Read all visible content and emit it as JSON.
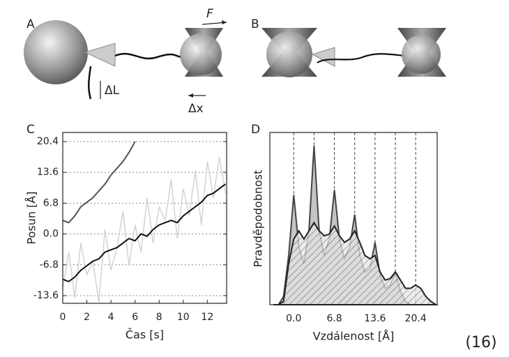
{
  "panels": [
    "A",
    "B",
    "C",
    "D"
  ],
  "annotations": {
    "force": "F",
    "delta_l": "ΔL",
    "delta_x": "Δx"
  },
  "equation_number": "(16)",
  "chart_data": [
    {
      "type": "line",
      "x_label": "Čas [s]",
      "y_label": "Posun [Å]",
      "x": [
        0,
        0.5,
        1,
        1.5,
        2,
        2.5,
        3,
        3.5,
        4,
        4.5,
        5,
        5.5,
        6,
        6.5,
        7,
        7.5,
        8,
        8.5,
        9,
        9.5,
        10,
        10.5,
        11,
        11.5,
        12,
        12.5,
        13,
        13.5
      ],
      "series": [
        {
          "color": "#d3d3d3",
          "values": [
            -12,
            -4,
            -14,
            -2,
            -9,
            -6,
            -15,
            1,
            -8,
            -3,
            5,
            -7,
            2,
            -4,
            8,
            -2,
            6,
            3,
            12,
            -1,
            10,
            4,
            14,
            2,
            16,
            8,
            17,
            9
          ]
        },
        {
          "color": "#555555",
          "values": [
            3,
            2.5,
            4,
            6,
            7,
            8,
            9.5,
            11,
            13,
            14.5,
            16,
            18,
            20.4,
            null,
            null,
            null,
            null,
            null,
            null,
            null,
            null,
            null,
            null,
            null,
            null,
            null,
            null,
            null
          ]
        },
        {
          "color": "#111111",
          "values": [
            -10,
            -10.5,
            -9.5,
            -8,
            -7,
            -6,
            -5.5,
            -4,
            -3.5,
            -3,
            -2,
            -1,
            -1.5,
            0,
            -0.5,
            1,
            2,
            2.5,
            3,
            2.5,
            4,
            5,
            6,
            7,
            8.5,
            9,
            10,
            11
          ]
        }
      ],
      "xlim": [
        0,
        13.6
      ],
      "ylim": [
        -15.3,
        22.4
      ],
      "xticks": [
        0,
        2,
        4,
        6,
        8,
        10,
        12
      ],
      "yticks": [
        -13.6,
        -6.8,
        {
          "value": 0,
          "label": "0.0"
        },
        6.8,
        13.6,
        20.4
      ],
      "grid": true
    },
    {
      "type": "area",
      "x_label": "Vzdálenost [Å]",
      "y_label": "Pravděpodobnost",
      "x": [
        -3.4,
        -2.55,
        -1.7,
        -0.85,
        0,
        0.85,
        1.7,
        2.55,
        3.4,
        4.25,
        5.1,
        5.95,
        6.8,
        7.65,
        8.5,
        9.35,
        10.2,
        11.05,
        11.9,
        12.75,
        13.6,
        14.45,
        15.3,
        16.15,
        17,
        17.85,
        18.7,
        19.55,
        20.4,
        21.25,
        22.1,
        22.95,
        23.8
      ],
      "series": [
        {
          "color": "#444444",
          "fill": "#c4c4c4",
          "hatch": false,
          "values": [
            0,
            0,
            0.05,
            0.3,
            0.67,
            0.35,
            0.25,
            0.45,
            0.97,
            0.45,
            0.3,
            0.4,
            0.7,
            0.4,
            0.28,
            0.35,
            0.55,
            0.3,
            0.2,
            0.22,
            0.38,
            0.18,
            0.1,
            0.12,
            0.2,
            0.08,
            0.02,
            0,
            0,
            0,
            0,
            0,
            0
          ]
        },
        {
          "color": "#222222",
          "fill": "none",
          "hatch": true,
          "values": [
            0,
            0,
            0.02,
            0.25,
            0.4,
            0.45,
            0.4,
            0.45,
            0.5,
            0.45,
            0.42,
            0.43,
            0.48,
            0.42,
            0.38,
            0.4,
            0.45,
            0.38,
            0.3,
            0.28,
            0.3,
            0.2,
            0.15,
            0.16,
            0.2,
            0.15,
            0.1,
            0.1,
            0.12,
            0.1,
            0.05,
            0.02,
            0
          ]
        }
      ],
      "vlines": [
        0,
        3.4,
        6.8,
        10.2,
        13.6,
        17,
        20.4
      ],
      "xlim": [
        -4,
        24
      ],
      "ylim": [
        0,
        1.05
      ],
      "xticks": [
        {
          "value": 0,
          "label": "0.0"
        },
        6.8,
        13.6,
        20.4
      ]
    }
  ]
}
